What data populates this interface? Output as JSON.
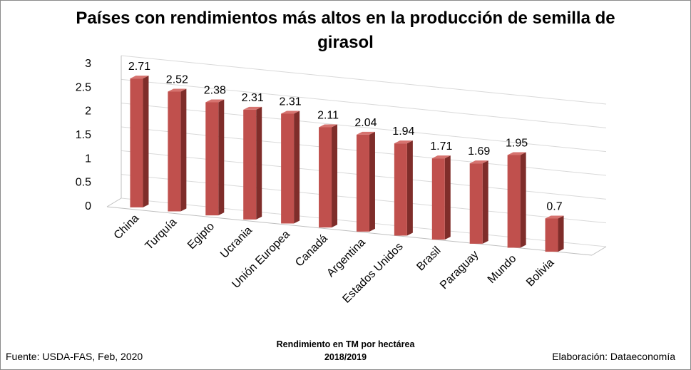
{
  "chart_data": {
    "type": "bar",
    "title_line1": "Países con rendimientos más altos en la producción de semilla de",
    "title_line2": "girasol",
    "categories": [
      "China",
      "Turquía",
      "Egipto",
      "Ucrania",
      "Unión Europea",
      "Canadá",
      "Argentina",
      "Estados Unidos",
      "Brasil",
      "Paraguay",
      "Mundo",
      "Bolivia"
    ],
    "values": [
      2.71,
      2.52,
      2.38,
      2.31,
      2.31,
      2.11,
      2.04,
      1.94,
      1.71,
      1.69,
      1.95,
      0.7
    ],
    "value_labels": [
      "2.71",
      "2.52",
      "2.38",
      "2.31",
      "2.31",
      "2.11",
      "2.04",
      "1.94",
      "1.71",
      "1.69",
      "1.95",
      "0.7"
    ],
    "y_ticks": [
      "0",
      "0.5",
      "1",
      "1.5",
      "2",
      "2.5",
      "3"
    ],
    "ylim": [
      0,
      3
    ],
    "xlabel_line1": "Rendimiento en TM por hectárea",
    "xlabel_line2": "2018/2019",
    "grid": true,
    "legend": "none",
    "bar_color": "#c0504d"
  },
  "footer": {
    "source": "Fuente:  USDA-FAS, Feb, 2020",
    "credit": "Elaboración: Dataeconomía"
  }
}
